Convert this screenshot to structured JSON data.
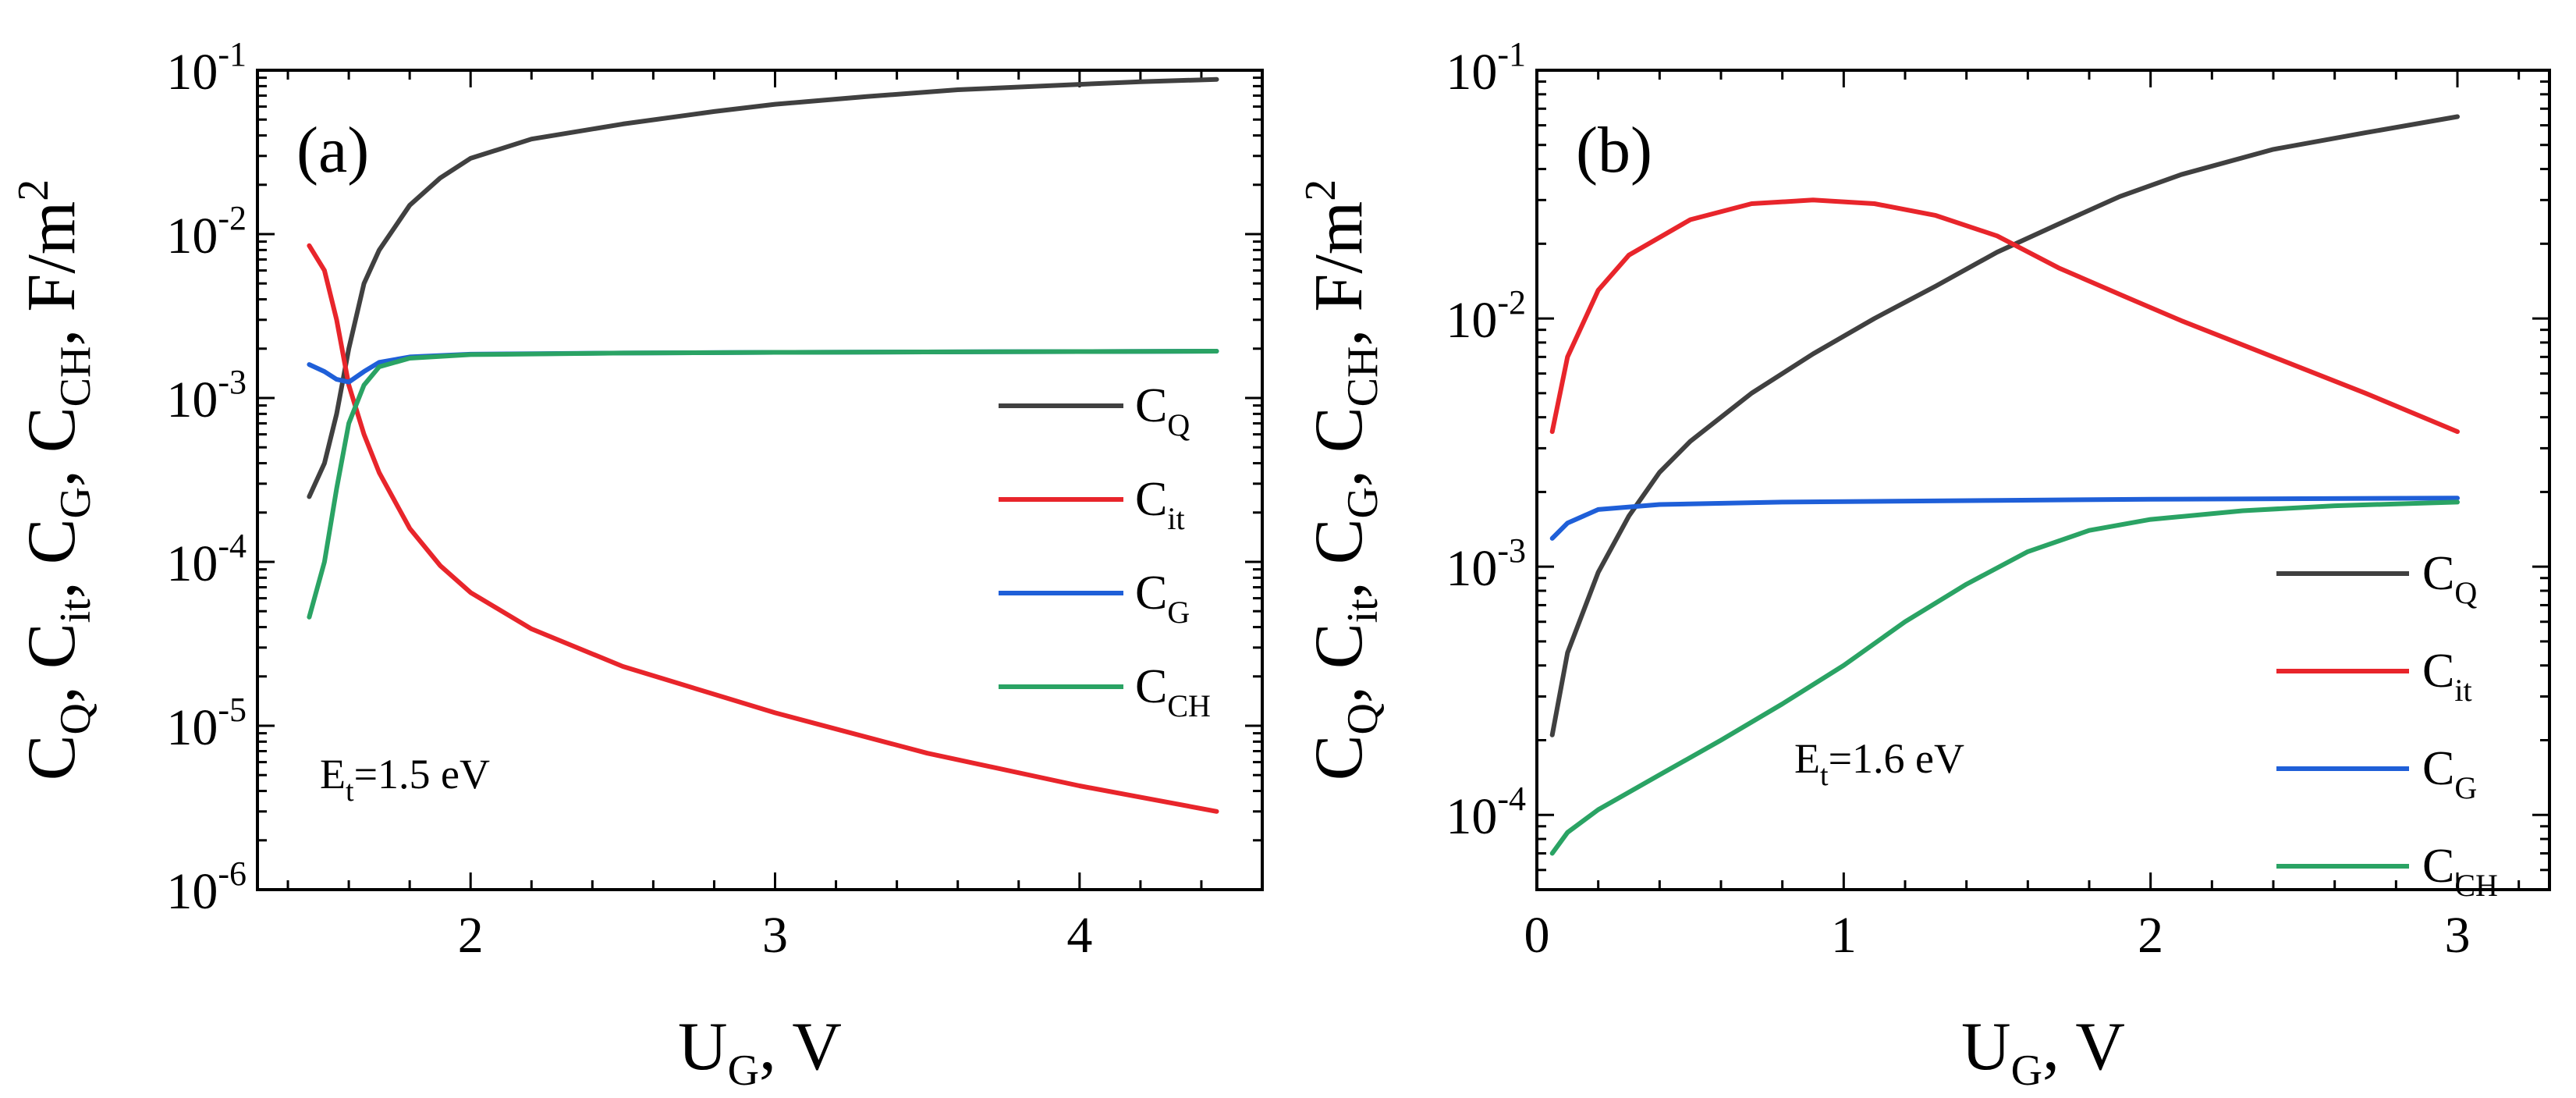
{
  "chart_data": [
    {
      "type": "line",
      "panel_label": "(a)",
      "annotation": "E_t=1.5 eV",
      "ylabel": "C_Q, C_it, C_G, C_CH, F/m^2",
      "xlabel": "U_G, V",
      "xlim": [
        1.3,
        4.6
      ],
      "ylim": [
        1e-06,
        0.1
      ],
      "yscale": "log",
      "xticks": [
        2,
        3,
        4
      ],
      "ytick_exponents": [
        -6,
        -5,
        -4,
        -3,
        -2,
        -1
      ],
      "legend_position": "right",
      "series": [
        {
          "name": "C_Q",
          "color": "#404040",
          "points": [
            [
              1.47,
              0.00025
            ],
            [
              1.52,
              0.0004
            ],
            [
              1.56,
              0.0008
            ],
            [
              1.6,
              0.002
            ],
            [
              1.65,
              0.005
            ],
            [
              1.7,
              0.008
            ],
            [
              1.8,
              0.015
            ],
            [
              1.9,
              0.022
            ],
            [
              2.0,
              0.029
            ],
            [
              2.2,
              0.038
            ],
            [
              2.5,
              0.047
            ],
            [
              2.8,
              0.056
            ],
            [
              3.0,
              0.062
            ],
            [
              3.3,
              0.069
            ],
            [
              3.6,
              0.076
            ],
            [
              4.0,
              0.082
            ],
            [
              4.2,
              0.085
            ],
            [
              4.45,
              0.088
            ]
          ]
        },
        {
          "name": "C_it",
          "color": "#e8252b",
          "points": [
            [
              1.47,
              0.0085
            ],
            [
              1.52,
              0.006
            ],
            [
              1.56,
              0.003
            ],
            [
              1.6,
              0.0012
            ],
            [
              1.65,
              0.0006
            ],
            [
              1.7,
              0.00035
            ],
            [
              1.8,
              0.00016
            ],
            [
              1.9,
              9.5e-05
            ],
            [
              2.0,
              6.5e-05
            ],
            [
              2.2,
              3.9e-05
            ],
            [
              2.5,
              2.3e-05
            ],
            [
              3.0,
              1.2e-05
            ],
            [
              3.5,
              6.8e-06
            ],
            [
              4.0,
              4.3e-06
            ],
            [
              4.45,
              3e-06
            ]
          ]
        },
        {
          "name": "C_G",
          "color": "#1f5fd8",
          "points": [
            [
              1.47,
              0.0016
            ],
            [
              1.52,
              0.00145
            ],
            [
              1.56,
              0.0013
            ],
            [
              1.6,
              0.00125
            ],
            [
              1.65,
              0.00145
            ],
            [
              1.7,
              0.00165
            ],
            [
              1.8,
              0.00178
            ],
            [
              2.0,
              0.00185
            ],
            [
              2.5,
              0.00188
            ],
            [
              3.0,
              0.0019
            ],
            [
              4.0,
              0.00192
            ],
            [
              4.45,
              0.00193
            ]
          ]
        },
        {
          "name": "C_CH",
          "color": "#2aa364",
          "points": [
            [
              1.47,
              4.6e-05
            ],
            [
              1.52,
              0.0001
            ],
            [
              1.56,
              0.00028
            ],
            [
              1.6,
              0.0007
            ],
            [
              1.65,
              0.0012
            ],
            [
              1.7,
              0.00155
            ],
            [
              1.8,
              0.00175
            ],
            [
              2.0,
              0.00184
            ],
            [
              2.5,
              0.00188
            ],
            [
              3.0,
              0.0019
            ],
            [
              4.0,
              0.00192
            ],
            [
              4.45,
              0.00193
            ]
          ]
        }
      ]
    },
    {
      "type": "line",
      "panel_label": "(b)",
      "annotation": "E_t=1.6 eV",
      "ylabel": "C_Q, C_it, C_G, C_CH, F/m^2",
      "xlabel": "U_G, V",
      "xlim": [
        0,
        3.3
      ],
      "ylim": [
        5e-05,
        0.1
      ],
      "yscale": "log",
      "xticks": [
        0,
        1,
        2,
        3
      ],
      "ytick_exponents": [
        -4,
        -3,
        -2,
        -1
      ],
      "legend_position": "lower-right",
      "series": [
        {
          "name": "C_Q",
          "color": "#404040",
          "points": [
            [
              0.05,
              0.00021
            ],
            [
              0.1,
              0.00045
            ],
            [
              0.2,
              0.00095
            ],
            [
              0.3,
              0.0016
            ],
            [
              0.4,
              0.0024
            ],
            [
              0.5,
              0.0032
            ],
            [
              0.7,
              0.005
            ],
            [
              0.9,
              0.0072
            ],
            [
              1.1,
              0.01
            ],
            [
              1.3,
              0.0135
            ],
            [
              1.5,
              0.0185
            ],
            [
              1.7,
              0.024
            ],
            [
              1.9,
              0.031
            ],
            [
              2.1,
              0.038
            ],
            [
              2.4,
              0.048
            ],
            [
              2.7,
              0.056
            ],
            [
              3.0,
              0.065
            ]
          ]
        },
        {
          "name": "C_it",
          "color": "#e8252b",
          "points": [
            [
              0.05,
              0.0035
            ],
            [
              0.1,
              0.007
            ],
            [
              0.2,
              0.013
            ],
            [
              0.3,
              0.018
            ],
            [
              0.5,
              0.025
            ],
            [
              0.7,
              0.029
            ],
            [
              0.9,
              0.03
            ],
            [
              1.1,
              0.029
            ],
            [
              1.3,
              0.026
            ],
            [
              1.5,
              0.0215
            ],
            [
              1.7,
              0.016
            ],
            [
              1.9,
              0.0125
            ],
            [
              2.1,
              0.0098
            ],
            [
              2.4,
              0.007
            ],
            [
              2.7,
              0.005
            ],
            [
              3.0,
              0.0035
            ]
          ]
        },
        {
          "name": "C_G",
          "color": "#1f5fd8",
          "points": [
            [
              0.05,
              0.0013
            ],
            [
              0.1,
              0.0015
            ],
            [
              0.2,
              0.0017
            ],
            [
              0.4,
              0.00178
            ],
            [
              0.8,
              0.00182
            ],
            [
              1.5,
              0.00185
            ],
            [
              2.0,
              0.00187
            ],
            [
              2.5,
              0.00188
            ],
            [
              3.0,
              0.00189
            ]
          ]
        },
        {
          "name": "C_CH",
          "color": "#2aa364",
          "points": [
            [
              0.05,
              7e-05
            ],
            [
              0.1,
              8.5e-05
            ],
            [
              0.2,
              0.000105
            ],
            [
              0.4,
              0.000145
            ],
            [
              0.6,
              0.0002
            ],
            [
              0.8,
              0.00028
            ],
            [
              1.0,
              0.0004
            ],
            [
              1.2,
              0.0006
            ],
            [
              1.4,
              0.00085
            ],
            [
              1.6,
              0.00115
            ],
            [
              1.8,
              0.0014
            ],
            [
              2.0,
              0.00155
            ],
            [
              2.3,
              0.00168
            ],
            [
              2.6,
              0.00176
            ],
            [
              3.0,
              0.00182
            ]
          ]
        }
      ]
    }
  ]
}
